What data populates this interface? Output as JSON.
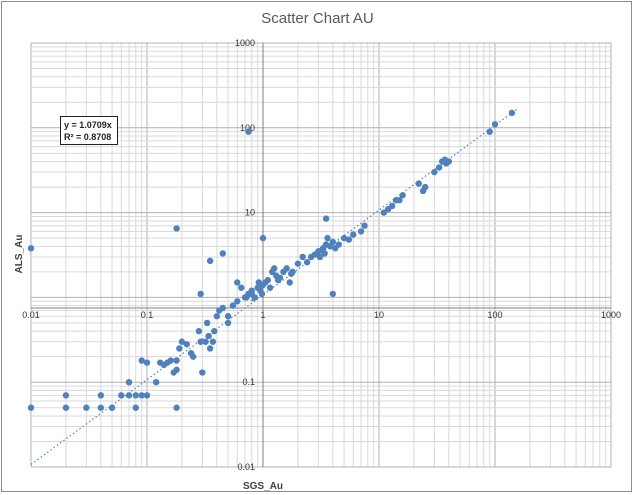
{
  "chart_data": {
    "type": "scatter",
    "title": "Scatter Chart  AU",
    "xlabel": "SGS_Au",
    "ylabel": "ALS_Au",
    "xscale": "log",
    "yscale": "log",
    "xlim": [
      0.01,
      1000
    ],
    "ylim": [
      0.01,
      1000
    ],
    "xticks": [
      "0.01",
      "0.1",
      "1",
      "10",
      "100",
      "1000"
    ],
    "yticks": [
      "1000",
      "100",
      "10",
      "1",
      "0.1",
      "0.01"
    ],
    "grid": true,
    "trendline": {
      "type": "linear",
      "slope": 1.0709,
      "equation": "y = 1.0709x",
      "r2": "R² = 0.8708"
    },
    "point_color": "#4f81bd",
    "x": [
      0.01,
      0.01,
      0.02,
      0.02,
      0.03,
      0.04,
      0.04,
      0.05,
      0.06,
      0.07,
      0.07,
      0.08,
      0.08,
      0.09,
      0.09,
      0.1,
      0.1,
      0.12,
      0.13,
      0.14,
      0.15,
      0.16,
      0.17,
      0.18,
      0.18,
      0.18,
      0.19,
      0.2,
      0.22,
      0.24,
      0.28,
      0.29,
      0.3,
      0.32,
      0.34,
      0.33,
      0.35,
      0.37,
      0.38,
      0.4,
      0.42,
      0.45,
      0.5,
      0.55,
      0.6,
      0.65,
      0.7,
      0.72,
      0.75,
      0.8,
      0.85,
      0.9,
      0.92,
      0.95,
      0.98,
      1.0,
      1.05,
      1.1,
      1.15,
      1.2,
      1.25,
      1.3,
      1.35,
      1.4,
      1.5,
      1.6,
      1.7,
      1.75,
      1.8,
      2.0,
      2.2,
      2.4,
      2.6,
      2.8,
      3.0,
      3.1,
      3.2,
      3.3,
      3.4,
      3.5,
      3.6,
      3.8,
      4.0,
      4.2,
      4.5,
      5.0,
      5.5,
      6.0,
      7.0,
      7.5,
      11,
      12,
      13,
      14,
      15,
      16,
      22,
      24,
      25,
      30,
      33,
      35,
      37,
      38,
      40,
      90,
      100,
      140,
      0.18,
      0.75,
      1.0,
      3.5,
      4.0,
      0.35,
      0.45,
      0.29,
      0.6,
      0.8,
      0.25,
      0.5
    ],
    "y": [
      0.05,
      3.8,
      0.07,
      0.05,
      0.05,
      0.07,
      0.05,
      0.05,
      0.07,
      0.07,
      0.1,
      0.07,
      0.05,
      0.07,
      0.18,
      0.07,
      0.17,
      0.1,
      0.17,
      0.16,
      0.17,
      0.18,
      0.13,
      0.14,
      0.18,
      0.05,
      0.25,
      0.3,
      0.28,
      0.22,
      0.4,
      0.3,
      0.13,
      0.3,
      0.35,
      0.5,
      0.25,
      0.3,
      0.4,
      0.6,
      0.7,
      0.75,
      0.6,
      0.8,
      0.9,
      1.3,
      1.0,
      1.0,
      1.1,
      1.2,
      1.0,
      1.3,
      1.5,
      1.2,
      1.1,
      1.4,
      1.5,
      1.6,
      1.3,
      2.0,
      2.2,
      1.8,
      1.6,
      1.7,
      2.0,
      2.2,
      1.5,
      1.9,
      2.0,
      2.5,
      3.0,
      2.6,
      3.0,
      3.2,
      3.5,
      3.0,
      3.6,
      3.8,
      3.3,
      4.2,
      5.0,
      4.0,
      4.5,
      3.8,
      4.2,
      5.0,
      4.8,
      5.5,
      6.0,
      7.0,
      10,
      11,
      12,
      14,
      14,
      16,
      22,
      18,
      20,
      30,
      34,
      40,
      42,
      38,
      40,
      90,
      110,
      150,
      6.5,
      90,
      5.0,
      8.5,
      1.1,
      2.7,
      3.3,
      1.1,
      1.5,
      1.1,
      0.2,
      0.5
    ]
  }
}
